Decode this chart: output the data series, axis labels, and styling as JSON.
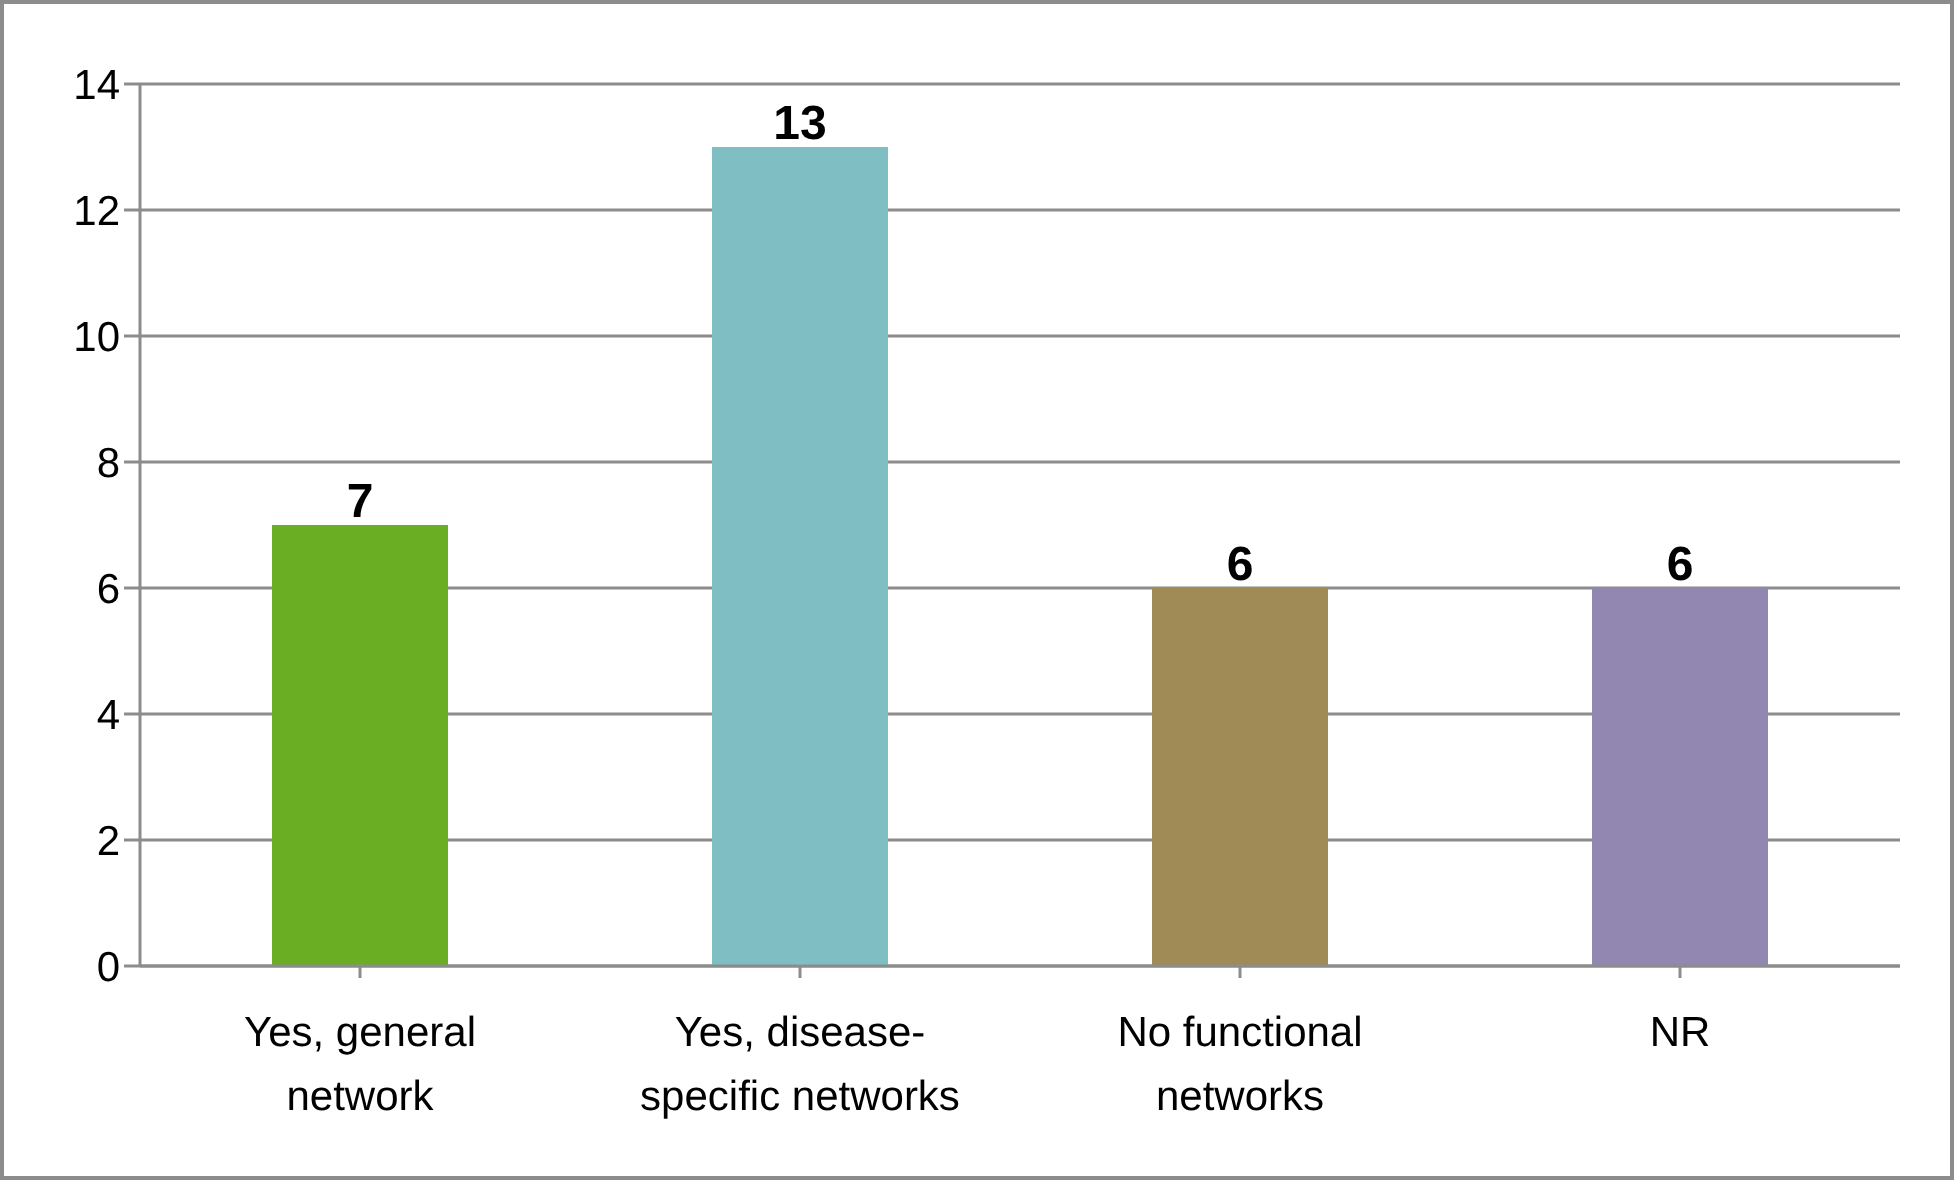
{
  "chart_data": {
    "type": "bar",
    "categories": [
      "Yes, general network",
      "Yes, disease-specific networks",
      "No functional networks",
      "NR"
    ],
    "values": [
      7,
      13,
      6,
      6
    ],
    "colors": [
      "#6aaf23",
      "#7fbec3",
      "#a08b56",
      "#9187b0"
    ],
    "ylim": [
      0,
      14
    ],
    "yticks": [
      0,
      2,
      4,
      6,
      8,
      10,
      12,
      14
    ],
    "grid": "y",
    "data_labels": true
  }
}
